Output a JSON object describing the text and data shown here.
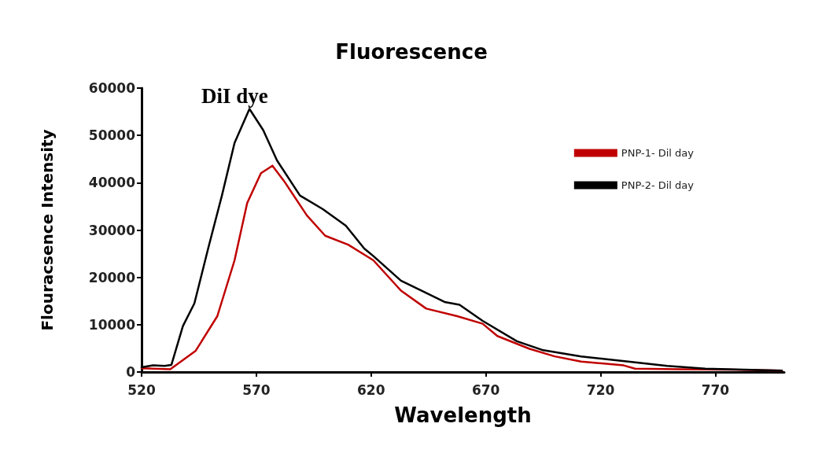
{
  "chart_data": {
    "type": "line",
    "title": "Fluorescence",
    "xlabel": "Wavelength",
    "ylabel": "Flouracsence Intensity",
    "annotations": [
      "DiI dye"
    ],
    "xlim": [
      520,
      800
    ],
    "xticks": [
      520,
      570,
      620,
      670,
      720,
      770
    ],
    "ylim": [
      0,
      60000
    ],
    "yticks": [
      0,
      10000,
      20000,
      30000,
      40000,
      50000,
      60000
    ],
    "grid": false,
    "legend": "top right",
    "marker": "none",
    "line_style": "solid",
    "series": [
      {
        "name": "PNP-1- Dil day",
        "color": "#c00000",
        "x": [
          520,
          532.5,
          543.6,
          553,
          560.5,
          566,
          572,
          577,
          582,
          592,
          600,
          610,
          617,
          621,
          633,
          644,
          657.5,
          668.6,
          675,
          689,
          700,
          711.5,
          730,
          735,
          754,
          776,
          799
        ],
        "values": [
          800,
          600,
          4500,
          11800,
          23600,
          35700,
          42000,
          43600,
          40400,
          33100,
          28800,
          26900,
          24800,
          23600,
          17200,
          13400,
          11800,
          10200,
          7600,
          4900,
          3300,
          2200,
          1400,
          700,
          600,
          500,
          300
        ]
      },
      {
        "name": "PNP-2- Dil day",
        "color": "#000000",
        "x": [
          520,
          525,
          530,
          533,
          538,
          543,
          549,
          555,
          560.5,
          567,
          573,
          579,
          589,
          599,
          609,
          617,
          621,
          633,
          642,
          652,
          658.5,
          668.6,
          683.5,
          695,
          711.5,
          732,
          749,
          765.6,
          799
        ],
        "values": [
          1000,
          1400,
          1300,
          1500,
          9700,
          14500,
          26100,
          37300,
          48400,
          55600,
          51100,
          44700,
          37300,
          34400,
          30900,
          26100,
          24500,
          19300,
          17200,
          14800,
          14200,
          10800,
          6500,
          4600,
          3300,
          2200,
          1300,
          700,
          300
        ]
      }
    ]
  }
}
